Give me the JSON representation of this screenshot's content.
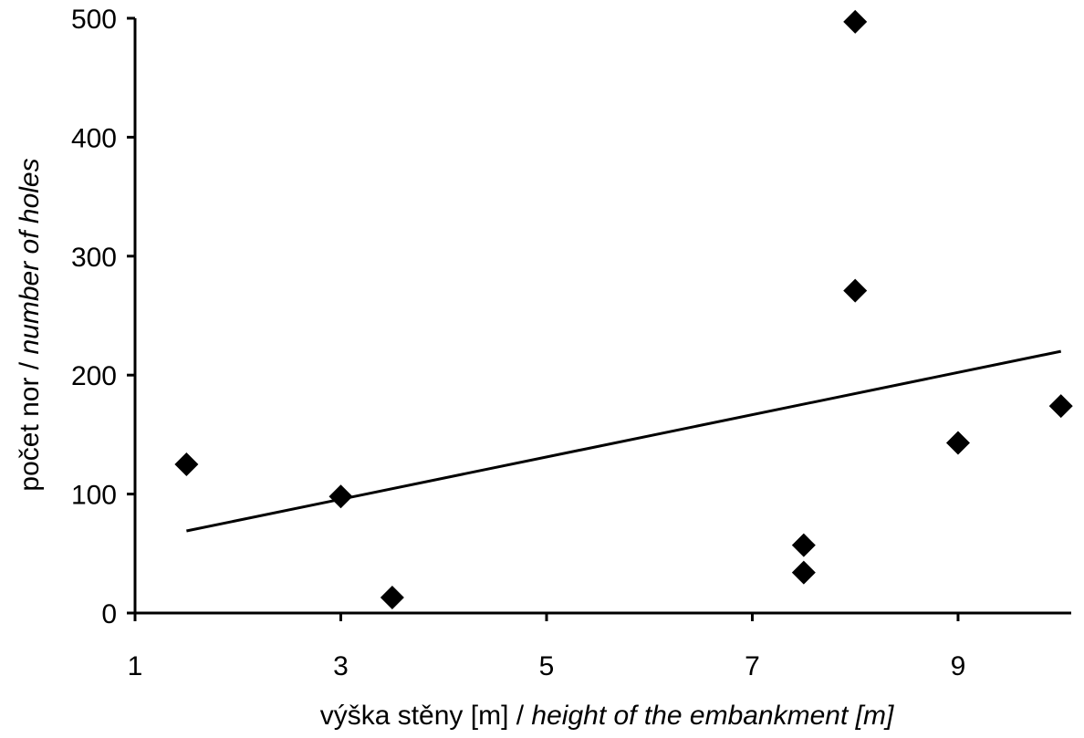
{
  "chart_data": {
    "type": "scatter",
    "xlabel": {
      "cz": "výška stěny [m] / ",
      "en": "height of the embankment [m]"
    },
    "ylabel": {
      "cz": "počet nor / ",
      "en": "number of holes"
    },
    "xlim": [
      1,
      10.1
    ],
    "ylim": [
      0,
      500
    ],
    "xticks": [
      1,
      3,
      5,
      7,
      9
    ],
    "yticks": [
      0,
      100,
      200,
      300,
      400,
      500
    ],
    "grid": false,
    "legend": "none",
    "marker": "diamond",
    "marker_color": "#000000",
    "points": [
      {
        "x": 1.5,
        "y": 125
      },
      {
        "x": 3.0,
        "y": 98
      },
      {
        "x": 3.5,
        "y": 13
      },
      {
        "x": 7.5,
        "y": 57
      },
      {
        "x": 7.5,
        "y": 34
      },
      {
        "x": 8.0,
        "y": 497
      },
      {
        "x": 8.0,
        "y": 271
      },
      {
        "x": 9.0,
        "y": 143
      },
      {
        "x": 10.0,
        "y": 174
      }
    ],
    "trendline": {
      "type": "linear",
      "x": [
        1.5,
        10.0
      ],
      "y": [
        69,
        220
      ]
    }
  }
}
